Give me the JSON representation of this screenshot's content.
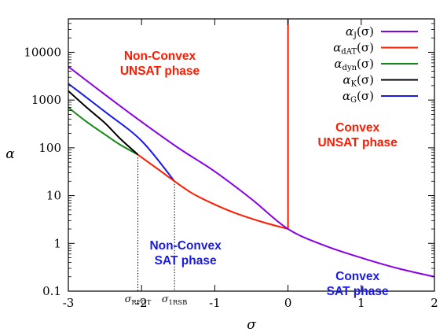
{
  "chart_data": {
    "type": "line",
    "title": "",
    "xlabel": "σ",
    "ylabel": "α",
    "xlim": [
      -3,
      2
    ],
    "ylim": [
      0.1,
      50000
    ],
    "yscale": "log",
    "grid": false,
    "legend_position": "top-right",
    "x_ticks": [
      {
        "value": -3,
        "label": "-3"
      },
      {
        "value": -2,
        "label": "-2"
      },
      {
        "value": -1,
        "label": "-1"
      },
      {
        "value": 0,
        "label": "0"
      },
      {
        "value": 1,
        "label": "1"
      },
      {
        "value": 2,
        "label": "2"
      }
    ],
    "y_ticks": [
      {
        "value": 0.1,
        "label": "0.1"
      },
      {
        "value": 1,
        "label": "1"
      },
      {
        "value": 10,
        "label": "10"
      },
      {
        "value": 100,
        "label": "100"
      },
      {
        "value": 1000,
        "label": "1000"
      },
      {
        "value": 10000,
        "label": "10000"
      }
    ],
    "series": [
      {
        "name": "αJ(σ)",
        "legend_main": "α",
        "legend_sub": "J",
        "legend_tail": "(σ)",
        "color": "#8a00e6",
        "x": [
          -3,
          -2.5,
          -2,
          -1.5,
          -1,
          -0.5,
          0,
          0.5,
          1,
          1.5,
          2
        ],
        "y": [
          5000,
          1300,
          350,
          100,
          32,
          8.5,
          2,
          0.9,
          0.5,
          0.3,
          0.2
        ]
      },
      {
        "name": "αdAT(σ)",
        "legend_main": "α",
        "legend_sub": "dAT",
        "legend_tail": "(σ)",
        "color": "#ff1a00",
        "x": [
          -2.05,
          -1.8,
          -1.55,
          -1.3,
          -1,
          -0.7,
          -0.35,
          0
        ],
        "y": [
          72,
          38,
          20,
          11,
          6.5,
          4.2,
          2.8,
          2
        ],
        "vertical_x": 0
      },
      {
        "name": "αdyn(σ)",
        "legend_main": "α",
        "legend_sub": "dyn",
        "legend_tail": "(σ)",
        "color": "#138a13",
        "x": [
          -3,
          -2.75,
          -2.5,
          -2.3,
          -2.05
        ],
        "y": [
          700,
          350,
          190,
          118,
          72
        ]
      },
      {
        "name": "αK(σ)",
        "legend_main": "α",
        "legend_sub": "K",
        "legend_tail": "(σ)",
        "color": "#000000",
        "x": [
          -3,
          -2.75,
          -2.5,
          -2.3,
          -2.05
        ],
        "y": [
          1550,
          700,
          330,
          160,
          72
        ]
      },
      {
        "name": "αG(σ)",
        "legend_main": "α",
        "legend_sub": "G",
        "legend_tail": "(σ)",
        "color": "#1a1ae6",
        "x": [
          -3,
          -2.5,
          -2,
          -1.55
        ],
        "y": [
          2200,
          570,
          140,
          20
        ]
      }
    ],
    "annotations": [
      {
        "lines": [
          "Non-Convex",
          "UNSAT phase"
        ],
        "color": "#ff1a00",
        "x": -1.75,
        "y": 7000
      },
      {
        "lines": [
          "Convex",
          "UNSAT phase"
        ],
        "color": "#ff1a00",
        "x": 0.95,
        "y": 220
      },
      {
        "lines": [
          "Non-Convex",
          "SAT phase"
        ],
        "color": "#1a1ae6",
        "x": -1.4,
        "y": 0.75
      },
      {
        "lines": [
          "Convex",
          "SAT phase"
        ],
        "color": "#1a1ae6",
        "x": 0.95,
        "y": 0.17
      }
    ],
    "markers": [
      {
        "x": -2.05,
        "y": 72,
        "main": "σ",
        "sub": "RFOT"
      },
      {
        "x": -1.55,
        "y": 20,
        "main": "σ",
        "sub": "1RSB"
      }
    ]
  }
}
